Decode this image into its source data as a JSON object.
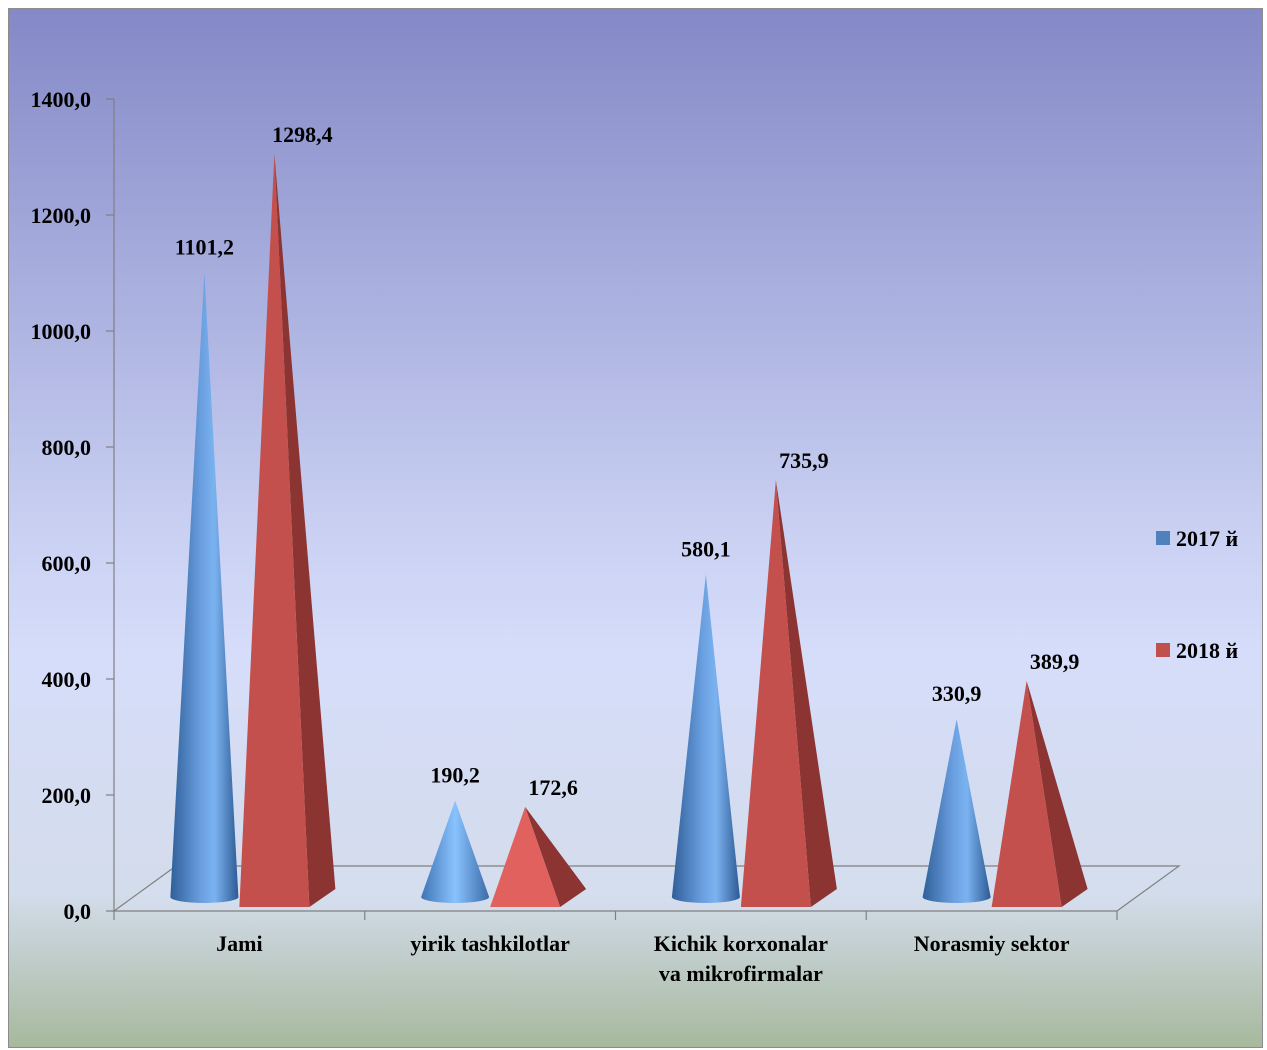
{
  "chart_data": {
    "type": "bar",
    "shape": "3d-cone-pyramid",
    "categories": [
      [
        "Jami"
      ],
      [
        "yirik tashkilotlar"
      ],
      [
        "Kichik korxonalar",
        "va mikrofirmalar"
      ],
      [
        "Norasmiy sektor"
      ]
    ],
    "series": [
      {
        "name": "2017 й",
        "values": [
          1101.2,
          190.2,
          580.1,
          330.9
        ],
        "labels": [
          "1101,2",
          "190,2",
          "580,1",
          "330,9"
        ],
        "color": "#4f81bd"
      },
      {
        "name": "2018 й",
        "values": [
          1298.4,
          172.6,
          735.9,
          389.9
        ],
        "labels": [
          "1298,4",
          "172,6",
          "735,9",
          "389,9"
        ],
        "color": "#c0504d"
      }
    ],
    "yticks": [
      "0,0",
      "200,0",
      "400,0",
      "600,0",
      "800,0",
      "1000,0",
      "1200,0",
      "1400,0"
    ],
    "ylim": [
      0,
      1400
    ],
    "legend_position": "right",
    "grid": false
  }
}
